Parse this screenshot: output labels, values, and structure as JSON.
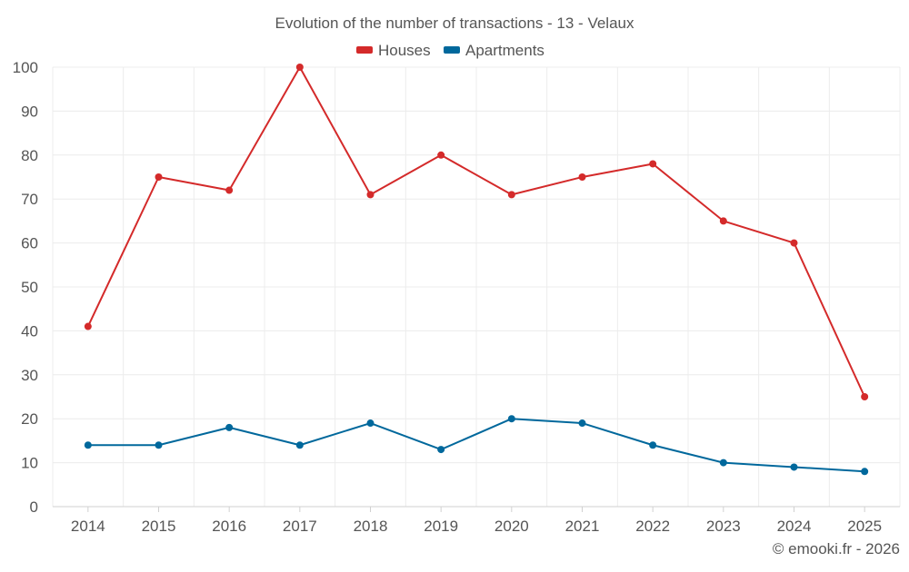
{
  "chart_data": {
    "type": "line",
    "title": "Evolution of the number of transactions - 13 - Velaux",
    "categories": [
      "2014",
      "2015",
      "2016",
      "2017",
      "2018",
      "2019",
      "2020",
      "2021",
      "2022",
      "2023",
      "2024",
      "2025"
    ],
    "series": [
      {
        "name": "Houses",
        "color": "#d42a2a",
        "values": [
          41,
          75,
          72,
          100,
          71,
          80,
          71,
          75,
          78,
          65,
          60,
          25
        ]
      },
      {
        "name": "Apartments",
        "color": "#00689c",
        "values": [
          14,
          14,
          18,
          14,
          19,
          13,
          20,
          19,
          14,
          10,
          9,
          8
        ]
      }
    ],
    "y_ticks": [
      0,
      10,
      20,
      30,
      40,
      50,
      60,
      70,
      80,
      90,
      100
    ],
    "ylim": [
      0,
      100
    ],
    "grid": true,
    "legend_position": "top-center",
    "xlabel": "",
    "ylabel": ""
  },
  "footer": {
    "credit": "© emooki.fr - 2026"
  },
  "colors": {
    "grid": "#ececec",
    "axis_text": "#555555",
    "title_text": "#555555"
  }
}
